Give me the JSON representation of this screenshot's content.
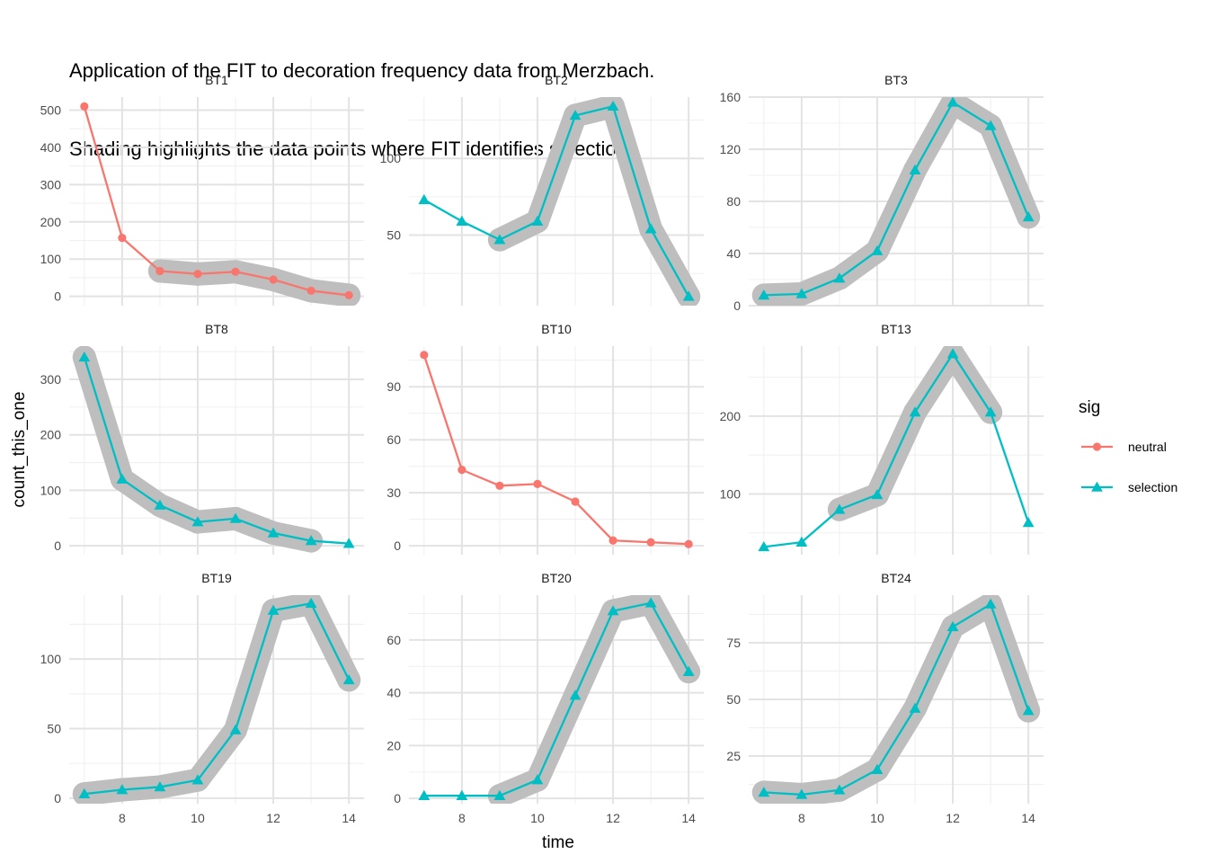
{
  "title_lines": [
    "Application of the FIT to decoration frequency data from Merzbach.",
    "Shading highlights the data points where FIT identifies selection"
  ],
  "chart_data": {
    "type": "line",
    "xlabel": "time",
    "ylabel": "count_this_one",
    "x": [
      7,
      8,
      9,
      10,
      11,
      12,
      13,
      14
    ],
    "x_ticks": [
      8,
      10,
      12,
      14
    ],
    "xlim": [
      6.6,
      14.4
    ],
    "legend": {
      "title": "sig",
      "placement": "right",
      "entries": [
        {
          "label": "neutral",
          "color": "#F8766D",
          "shape": "circle"
        },
        {
          "label": "selection",
          "color": "#00BFC4",
          "shape": "triangle"
        }
      ]
    },
    "shading_color": "#BEBEBE",
    "panels": [
      {
        "name": "BT1",
        "sig": "neutral",
        "y": [
          510,
          157,
          68,
          60,
          66,
          45,
          15,
          3
        ],
        "shaded": [
          false,
          false,
          true,
          true,
          true,
          true,
          true,
          true
        ],
        "ylim": [
          -25,
          535
        ],
        "yticks": [
          0,
          100,
          200,
          300,
          400,
          500
        ]
      },
      {
        "name": "BT2",
        "sig": "selection",
        "y": [
          73,
          59,
          47,
          59,
          128,
          134,
          54,
          10
        ],
        "shaded": [
          false,
          false,
          true,
          true,
          true,
          true,
          true,
          true
        ],
        "ylim": [
          4,
          140
        ],
        "yticks": [
          50,
          100
        ]
      },
      {
        "name": "BT3",
        "sig": "selection",
        "y": [
          8,
          9,
          21,
          42,
          104,
          156,
          138,
          68
        ],
        "shaded": [
          true,
          true,
          true,
          true,
          true,
          true,
          true,
          true
        ],
        "ylim": [
          0,
          160
        ],
        "yticks": [
          0,
          40,
          80,
          120,
          160
        ]
      },
      {
        "name": "BT8",
        "sig": "selection",
        "y": [
          340,
          120,
          73,
          43,
          49,
          23,
          9,
          4
        ],
        "shaded": [
          true,
          true,
          true,
          true,
          true,
          true,
          true,
          false
        ],
        "ylim": [
          -16,
          360
        ],
        "yticks": [
          0,
          100,
          200,
          300
        ]
      },
      {
        "name": "BT10",
        "sig": "neutral",
        "y": [
          108,
          43,
          34,
          35,
          25,
          3,
          2,
          1
        ],
        "shaded": [
          false,
          false,
          false,
          false,
          false,
          false,
          false,
          false
        ],
        "ylim": [
          -5,
          113
        ],
        "yticks": [
          0,
          30,
          60,
          90
        ]
      },
      {
        "name": "BT13",
        "sig": "selection",
        "y": [
          32,
          38,
          80,
          99,
          205,
          280,
          205,
          63
        ],
        "shaded": [
          false,
          false,
          true,
          true,
          true,
          true,
          true,
          false
        ],
        "ylim": [
          22,
          290
        ],
        "yticks": [
          100,
          200
        ]
      },
      {
        "name": "BT19",
        "sig": "selection",
        "y": [
          3,
          6,
          8,
          13,
          49,
          135,
          140,
          85
        ],
        "shaded": [
          true,
          true,
          true,
          true,
          true,
          true,
          true,
          true
        ],
        "ylim": [
          -4,
          146
        ],
        "yticks": [
          0,
          50,
          100
        ]
      },
      {
        "name": "BT20",
        "sig": "selection",
        "y": [
          1,
          1,
          1,
          7,
          39,
          71,
          74,
          48
        ],
        "shaded": [
          false,
          false,
          true,
          true,
          true,
          true,
          true,
          true
        ],
        "ylim": [
          -2,
          77
        ],
        "yticks": [
          0,
          20,
          40,
          60
        ]
      },
      {
        "name": "BT24",
        "sig": "selection",
        "y": [
          9,
          8,
          10,
          19,
          46,
          82,
          92,
          45
        ],
        "shaded": [
          true,
          true,
          true,
          true,
          true,
          true,
          true,
          true
        ],
        "ylim": [
          4,
          96
        ],
        "yticks": [
          25,
          50,
          75
        ]
      }
    ]
  }
}
